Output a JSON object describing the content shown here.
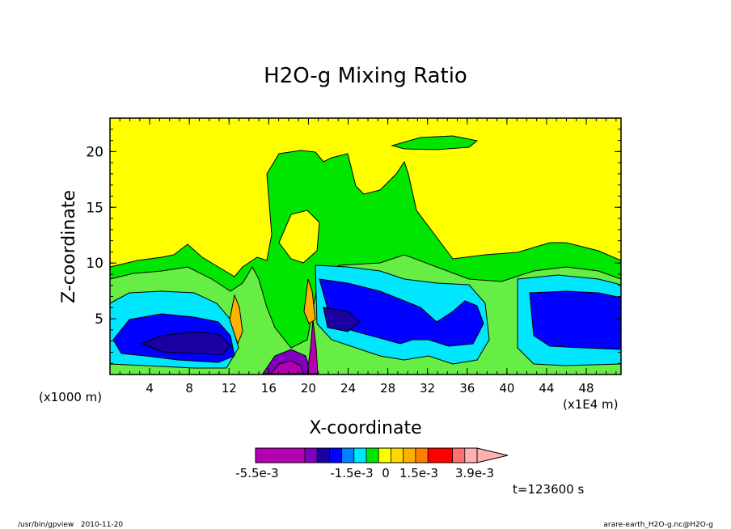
{
  "chart_data": {
    "type": "heatmap",
    "title": "H2O-g Mixing Ratio",
    "xlabel": "X-coordinate",
    "ylabel": "Z-coordinate",
    "x_scale_label": "(x1000 m)",
    "x_right_label": "(x1E4 m)",
    "x_ticks": [
      "4",
      "8",
      "12",
      "16",
      "20",
      "24",
      "28",
      "32",
      "36",
      "40",
      "44",
      "48"
    ],
    "y_ticks": [
      "5",
      "10",
      "15",
      "20"
    ],
    "xlim": [
      0,
      51.5
    ],
    "ylim": [
      0,
      23
    ],
    "colorbar": {
      "labels": [
        "-5.5e-3",
        "-1.5e-3",
        "0",
        "1.5e-3",
        "3.9e-3"
      ],
      "colors": [
        "#b300b3",
        "#b300b3",
        "#b300b3",
        "#b300b3",
        "#8000c0",
        "#1a00a0",
        "#0000ff",
        "#0080ff",
        "#00e6ff",
        "#00e600",
        "#ffff00",
        "#ffd800",
        "#ffb000",
        "#ff8000",
        "#ff0000",
        "#ff0000",
        "#ff7070",
        "#ffb0b0"
      ]
    },
    "levels_colors": {
      "background": "#ffff00",
      "green": "#00e600",
      "light_green": "#66ee44",
      "cyan": "#00e6ff",
      "blue": "#0000ff",
      "dark_blue": "#1a00a0",
      "purple": "#8000c0",
      "magenta": "#b300b3",
      "orange": "#ffb000"
    },
    "time_label": "t=123600 s"
  },
  "footer": {
    "left": "/usr/bin/gpview   2010-11-20",
    "right": "arare-earth_H2O-g.nc@H2O-g"
  }
}
